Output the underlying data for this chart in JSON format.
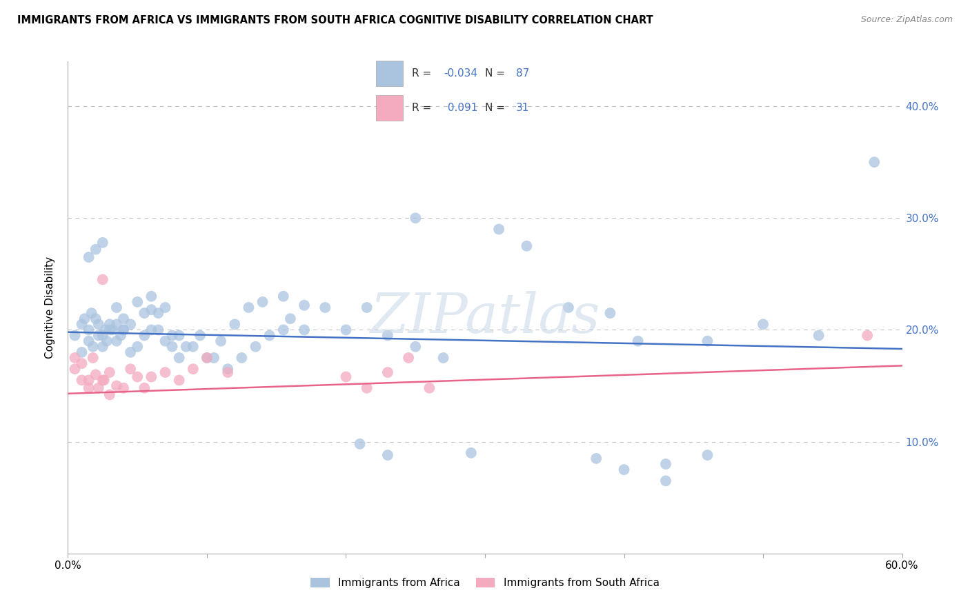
{
  "title": "IMMIGRANTS FROM AFRICA VS IMMIGRANTS FROM SOUTH AFRICA COGNITIVE DISABILITY CORRELATION CHART",
  "source": "Source: ZipAtlas.com",
  "ylabel": "Cognitive Disability",
  "xlim": [
    0.0,
    0.6
  ],
  "ylim": [
    0.0,
    0.44
  ],
  "R_africa": -0.034,
  "N_africa": 87,
  "R_south_africa": 0.091,
  "N_south_africa": 31,
  "color_africa": "#aac4e0",
  "color_south_africa": "#f4aabf",
  "line_color_africa": "#4472c4",
  "line_color_south_africa": "#e8638a",
  "africa_line_start": 0.198,
  "africa_line_end": 0.183,
  "sa_line_start": 0.143,
  "sa_line_end": 0.168,
  "scatter_africa_x": [
    0.005,
    0.01,
    0.012,
    0.015,
    0.017,
    0.02,
    0.022,
    0.025,
    0.027,
    0.03,
    0.01,
    0.015,
    0.018,
    0.022,
    0.025,
    0.028,
    0.032,
    0.035,
    0.038,
    0.04,
    0.015,
    0.02,
    0.025,
    0.03,
    0.035,
    0.04,
    0.045,
    0.05,
    0.055,
    0.06,
    0.035,
    0.04,
    0.045,
    0.05,
    0.055,
    0.06,
    0.065,
    0.07,
    0.075,
    0.08,
    0.06,
    0.065,
    0.07,
    0.075,
    0.08,
    0.09,
    0.1,
    0.11,
    0.12,
    0.13,
    0.085,
    0.095,
    0.105,
    0.115,
    0.125,
    0.135,
    0.145,
    0.155,
    0.16,
    0.17,
    0.14,
    0.155,
    0.17,
    0.185,
    0.2,
    0.215,
    0.23,
    0.25,
    0.27,
    0.29,
    0.21,
    0.23,
    0.25,
    0.31,
    0.33,
    0.36,
    0.39,
    0.41,
    0.43,
    0.46,
    0.38,
    0.4,
    0.43,
    0.46,
    0.5,
    0.54,
    0.58
  ],
  "scatter_africa_y": [
    0.195,
    0.205,
    0.21,
    0.2,
    0.215,
    0.21,
    0.205,
    0.195,
    0.2,
    0.205,
    0.18,
    0.19,
    0.185,
    0.195,
    0.185,
    0.19,
    0.2,
    0.205,
    0.195,
    0.2,
    0.265,
    0.272,
    0.278,
    0.2,
    0.22,
    0.21,
    0.18,
    0.185,
    0.215,
    0.218,
    0.19,
    0.2,
    0.205,
    0.225,
    0.195,
    0.23,
    0.2,
    0.19,
    0.185,
    0.195,
    0.2,
    0.215,
    0.22,
    0.195,
    0.175,
    0.185,
    0.175,
    0.19,
    0.205,
    0.22,
    0.185,
    0.195,
    0.175,
    0.165,
    0.175,
    0.185,
    0.195,
    0.2,
    0.21,
    0.222,
    0.225,
    0.23,
    0.2,
    0.22,
    0.2,
    0.22,
    0.195,
    0.185,
    0.175,
    0.09,
    0.098,
    0.088,
    0.3,
    0.29,
    0.275,
    0.22,
    0.215,
    0.19,
    0.08,
    0.088,
    0.085,
    0.075,
    0.065,
    0.19,
    0.205,
    0.195,
    0.35
  ],
  "scatter_sa_x": [
    0.005,
    0.01,
    0.015,
    0.02,
    0.025,
    0.03,
    0.005,
    0.01,
    0.015,
    0.018,
    0.022,
    0.026,
    0.03,
    0.035,
    0.04,
    0.045,
    0.05,
    0.055,
    0.06,
    0.07,
    0.08,
    0.09,
    0.1,
    0.115,
    0.2,
    0.215,
    0.23,
    0.245,
    0.26,
    0.575,
    0.025
  ],
  "scatter_sa_y": [
    0.165,
    0.17,
    0.155,
    0.16,
    0.155,
    0.162,
    0.175,
    0.155,
    0.148,
    0.175,
    0.148,
    0.155,
    0.142,
    0.15,
    0.148,
    0.165,
    0.158,
    0.148,
    0.158,
    0.162,
    0.155,
    0.165,
    0.175,
    0.162,
    0.158,
    0.148,
    0.162,
    0.175,
    0.148,
    0.195,
    0.245
  ]
}
